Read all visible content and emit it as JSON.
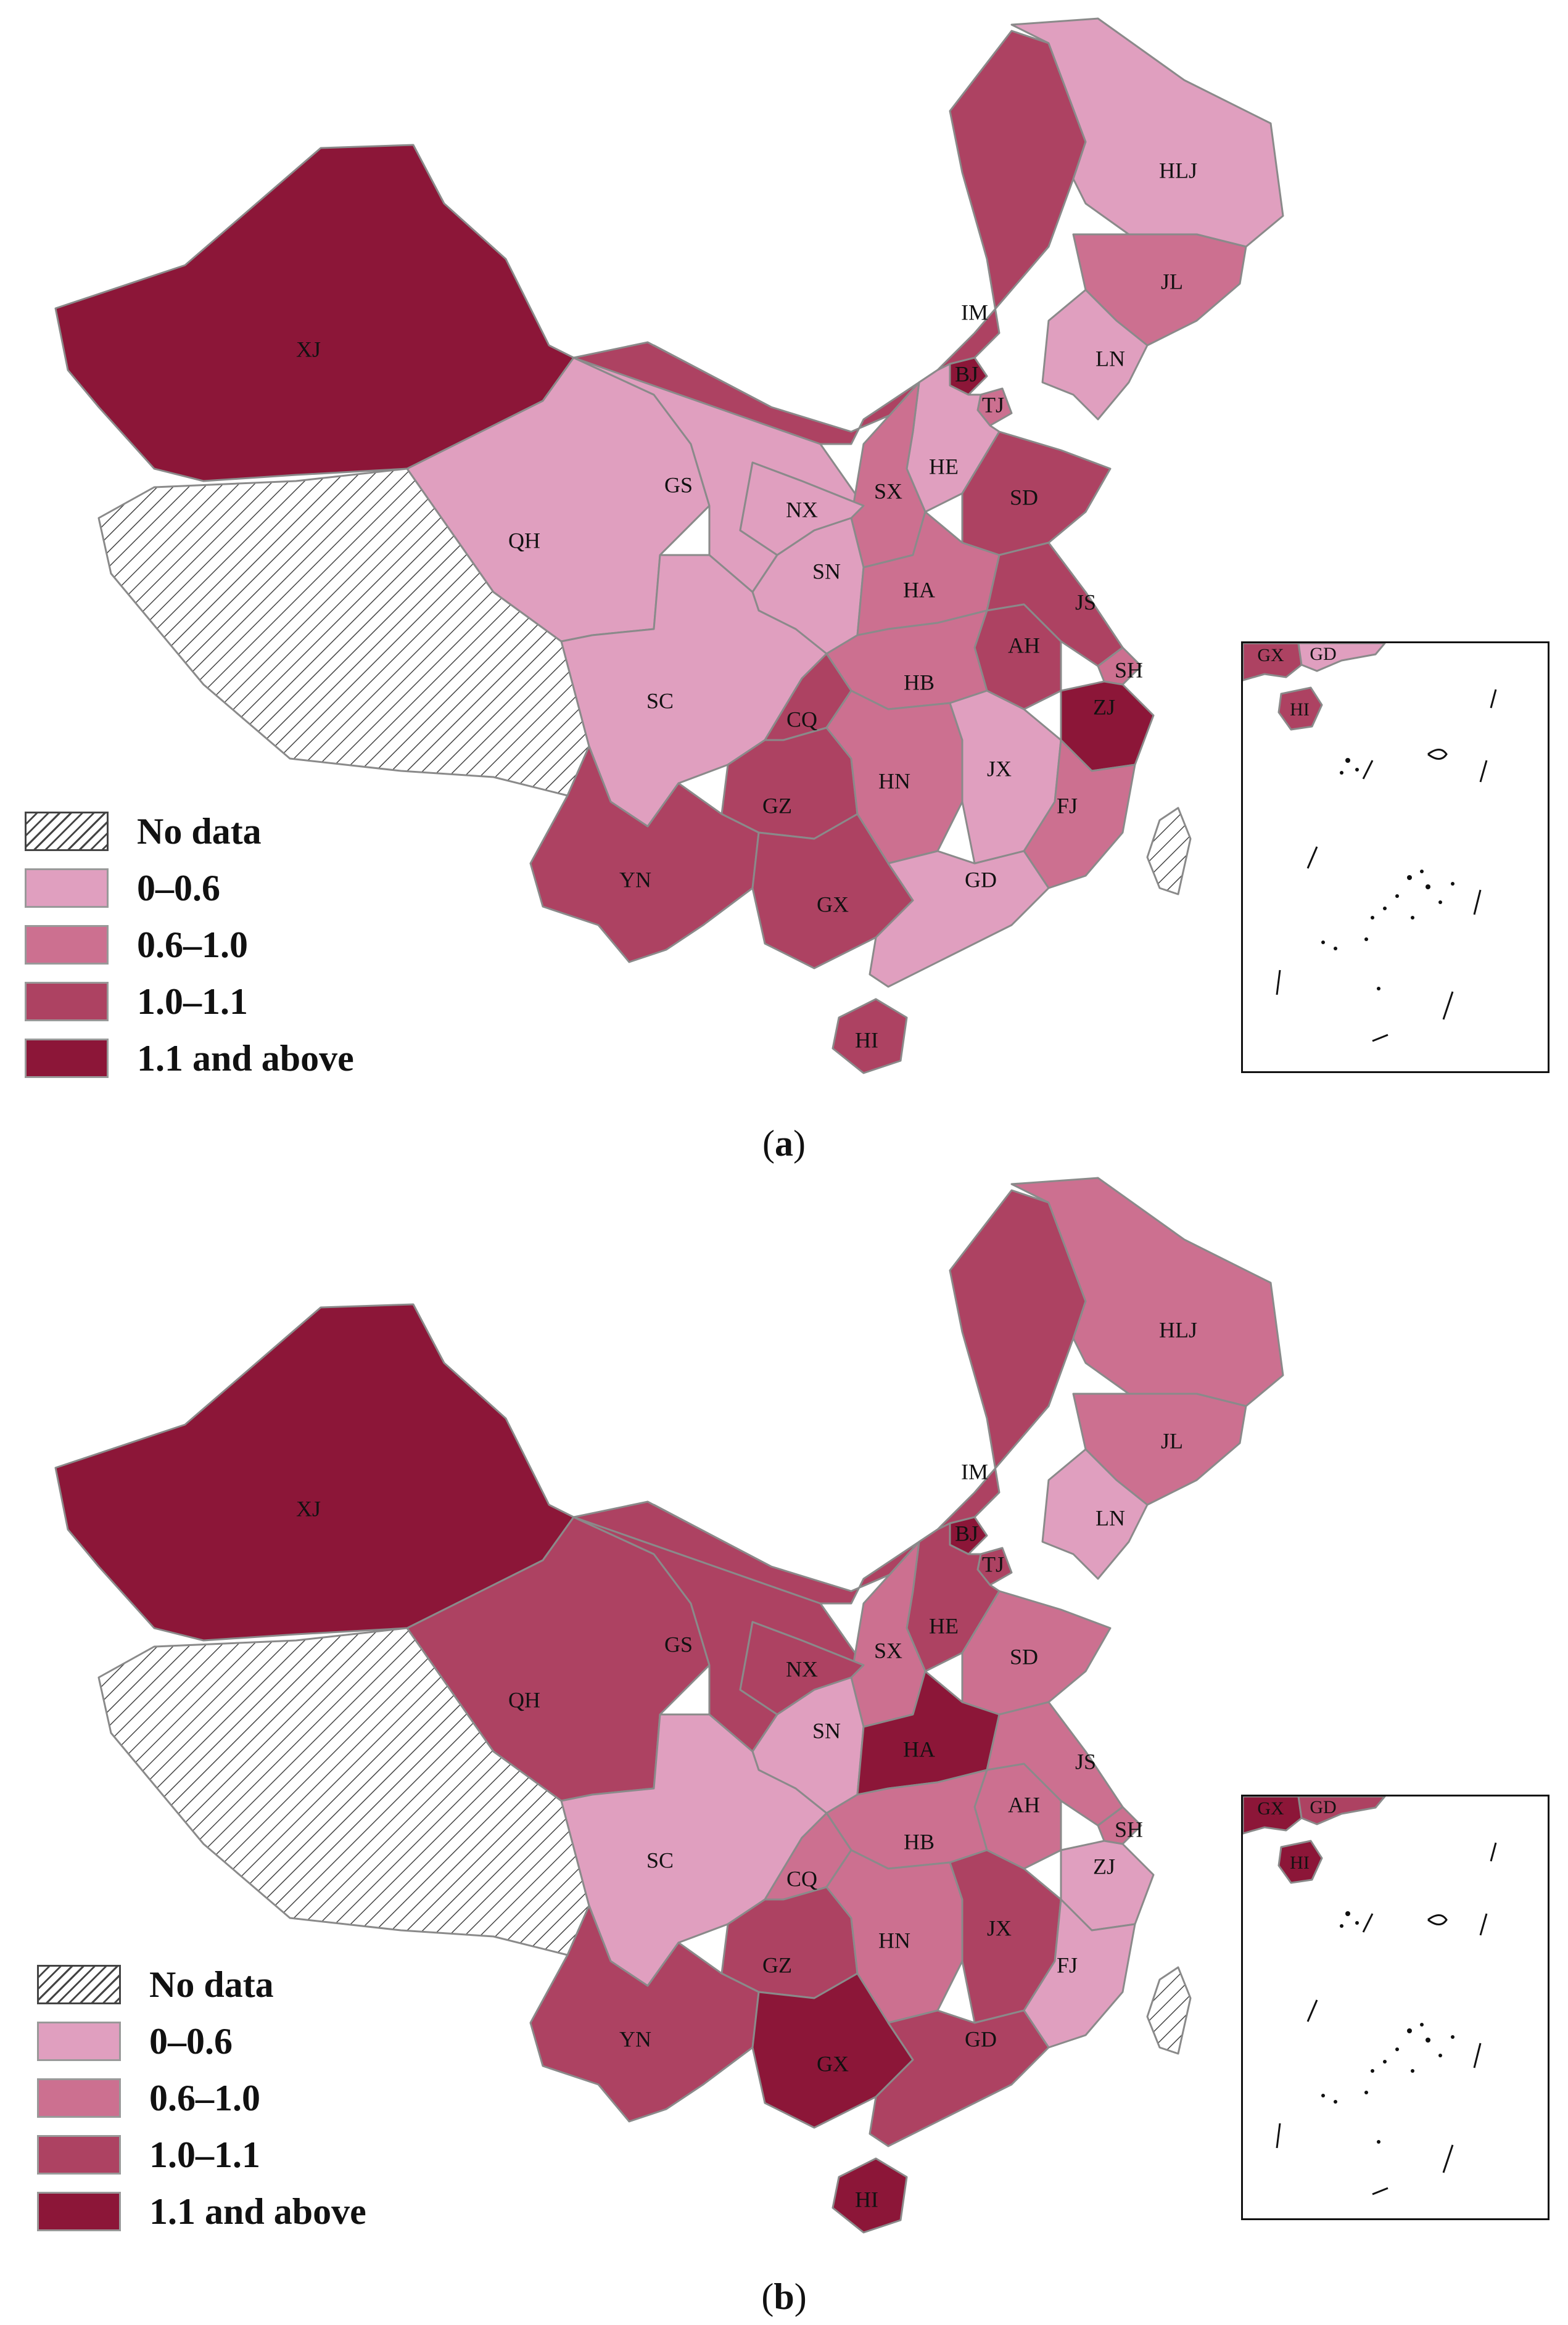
{
  "colors": {
    "no_data": "hatch",
    "c1": "#e09fbf",
    "c2": "#cc7090",
    "c3": "#ad4262",
    "c4": "#8c1638"
  },
  "legend": {
    "items": [
      {
        "label": "No data",
        "class": "no_data"
      },
      {
        "label": "0–0.6",
        "class": "c1"
      },
      {
        "label": "0.6–1.0",
        "class": "c2"
      },
      {
        "label": "1.0–1.1",
        "class": "c3"
      },
      {
        "label": "1.1 and above",
        "class": "c4"
      }
    ]
  },
  "panels": [
    {
      "caption_letter": "a",
      "provinces": {
        "XJ": {
          "label": "XJ",
          "class": "c4"
        },
        "XZ": {
          "label": "",
          "class": "no_data"
        },
        "QH": {
          "label": "QH",
          "class": "c1"
        },
        "GS": {
          "label": "GS",
          "class": "c1"
        },
        "IM": {
          "label": "IM",
          "class": "c3"
        },
        "HLJ": {
          "label": "HLJ",
          "class": "c1"
        },
        "JL": {
          "label": "JL",
          "class": "c2"
        },
        "LN": {
          "label": "LN",
          "class": "c1"
        },
        "BJ": {
          "label": "BJ",
          "class": "c4"
        },
        "TJ": {
          "label": "TJ",
          "class": "c2"
        },
        "HE": {
          "label": "HE",
          "class": "c1"
        },
        "SX": {
          "label": "SX",
          "class": "c2"
        },
        "NX": {
          "label": "NX",
          "class": "c1"
        },
        "SN": {
          "label": "SN",
          "class": "c1"
        },
        "SD": {
          "label": "SD",
          "class": "c3"
        },
        "HA": {
          "label": "HA",
          "class": "c2"
        },
        "JS": {
          "label": "JS",
          "class": "c3"
        },
        "AH": {
          "label": "AH",
          "class": "c3"
        },
        "SH": {
          "label": "SH",
          "class": "c2"
        },
        "ZJ": {
          "label": "ZJ",
          "class": "c4"
        },
        "HB": {
          "label": "HB",
          "class": "c2"
        },
        "SC": {
          "label": "SC",
          "class": "c1"
        },
        "CQ": {
          "label": "CQ",
          "class": "c3"
        },
        "GZ": {
          "label": "GZ",
          "class": "c3"
        },
        "HN": {
          "label": "HN",
          "class": "c2"
        },
        "JX": {
          "label": "JX",
          "class": "c1"
        },
        "FJ": {
          "label": "FJ",
          "class": "c2"
        },
        "YN": {
          "label": "YN",
          "class": "c3"
        },
        "GX": {
          "label": "GX",
          "class": "c3"
        },
        "GD": {
          "label": "GD",
          "class": "c1"
        },
        "HI": {
          "label": "HI",
          "class": "c3"
        },
        "TW": {
          "label": "",
          "class": "no_data"
        }
      },
      "inset": {
        "gx": "GX",
        "gd": "GD",
        "hi": "HI",
        "gx_class": "c3",
        "gd_class": "c1",
        "hi_class": "c3"
      }
    },
    {
      "caption_letter": "b",
      "provinces": {
        "XJ": {
          "label": "XJ",
          "class": "c4"
        },
        "XZ": {
          "label": "",
          "class": "no_data"
        },
        "QH": {
          "label": "QH",
          "class": "c3"
        },
        "GS": {
          "label": "GS",
          "class": "c3"
        },
        "IM": {
          "label": "IM",
          "class": "c3"
        },
        "HLJ": {
          "label": "HLJ",
          "class": "c2"
        },
        "JL": {
          "label": "JL",
          "class": "c2"
        },
        "LN": {
          "label": "LN",
          "class": "c1"
        },
        "BJ": {
          "label": "BJ",
          "class": "c4"
        },
        "TJ": {
          "label": "TJ",
          "class": "c3"
        },
        "HE": {
          "label": "HE",
          "class": "c3"
        },
        "SX": {
          "label": "SX",
          "class": "c2"
        },
        "NX": {
          "label": "NX",
          "class": "c3"
        },
        "SN": {
          "label": "SN",
          "class": "c1"
        },
        "SD": {
          "label": "SD",
          "class": "c2"
        },
        "HA": {
          "label": "HA",
          "class": "c4"
        },
        "JS": {
          "label": "JS",
          "class": "c2"
        },
        "AH": {
          "label": "AH",
          "class": "c2"
        },
        "SH": {
          "label": "SH",
          "class": "c2"
        },
        "ZJ": {
          "label": "ZJ",
          "class": "c1"
        },
        "HB": {
          "label": "HB",
          "class": "c2"
        },
        "SC": {
          "label": "SC",
          "class": "c1"
        },
        "CQ": {
          "label": "CQ",
          "class": "c2"
        },
        "GZ": {
          "label": "GZ",
          "class": "c3"
        },
        "HN": {
          "label": "HN",
          "class": "c2"
        },
        "JX": {
          "label": "JX",
          "class": "c3"
        },
        "FJ": {
          "label": "FJ",
          "class": "c1"
        },
        "YN": {
          "label": "YN",
          "class": "c3"
        },
        "GX": {
          "label": "GX",
          "class": "c4"
        },
        "GD": {
          "label": "GD",
          "class": "c3"
        },
        "HI": {
          "label": "HI",
          "class": "c4"
        },
        "TW": {
          "label": "",
          "class": "no_data"
        }
      },
      "inset": {
        "gx": "GX",
        "gd": "GD",
        "hi": "HI",
        "gx_class": "c4",
        "gd_class": "c3",
        "hi_class": "c4"
      }
    }
  ]
}
